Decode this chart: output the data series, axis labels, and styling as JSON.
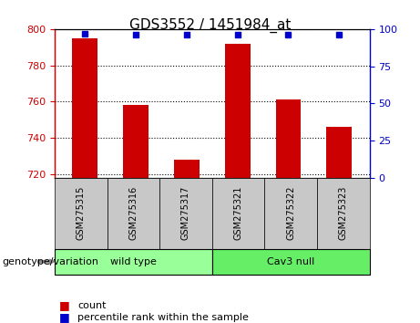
{
  "title": "GDS3552 / 1451984_at",
  "samples": [
    "GSM275315",
    "GSM275316",
    "GSM275317",
    "GSM275321",
    "GSM275322",
    "GSM275323"
  ],
  "count_values": [
    795,
    758,
    728,
    792,
    761,
    746
  ],
  "percentile_values": [
    97,
    96,
    96,
    96,
    96,
    96
  ],
  "ylim_left": [
    718,
    800
  ],
  "ylim_right": [
    0,
    100
  ],
  "yticks_left": [
    720,
    740,
    760,
    780,
    800
  ],
  "yticks_right": [
    0,
    25,
    50,
    75,
    100
  ],
  "bar_color": "#cc0000",
  "dot_color": "#0000cc",
  "groups": [
    {
      "label": "wild type",
      "count": 3,
      "color": "#99ff99"
    },
    {
      "label": "Cav3 null",
      "count": 3,
      "color": "#66ee66"
    }
  ],
  "genotype_label": "genotype/variation",
  "legend_count": "count",
  "legend_percentile": "percentile rank within the sample",
  "tick_label_area_color": "#c8c8c8"
}
